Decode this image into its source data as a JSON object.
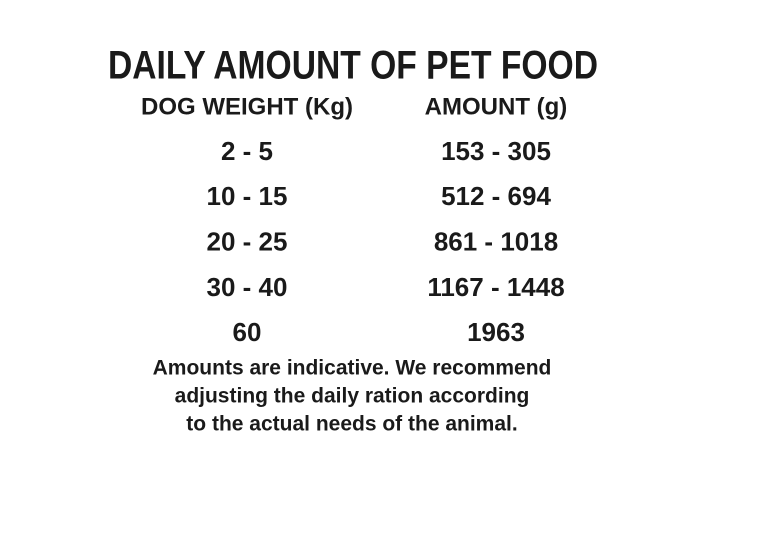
{
  "title": "DAILY AMOUNT OF PET FOOD",
  "table": {
    "headers": [
      "DOG WEIGHT (Kg)",
      "AMOUNT (g)"
    ],
    "rows": [
      [
        "2 - 5",
        "153 - 305"
      ],
      [
        "10 - 15",
        "512 - 694"
      ],
      [
        "20 - 25",
        "861 - 1018"
      ],
      [
        "30 - 40",
        "1167 - 1448"
      ],
      [
        "60",
        "1963"
      ]
    ]
  },
  "note": {
    "lines": [
      "Amounts are indicative. We recommend",
      "adjusting the daily ration according",
      "to the actual needs of the animal."
    ]
  }
}
